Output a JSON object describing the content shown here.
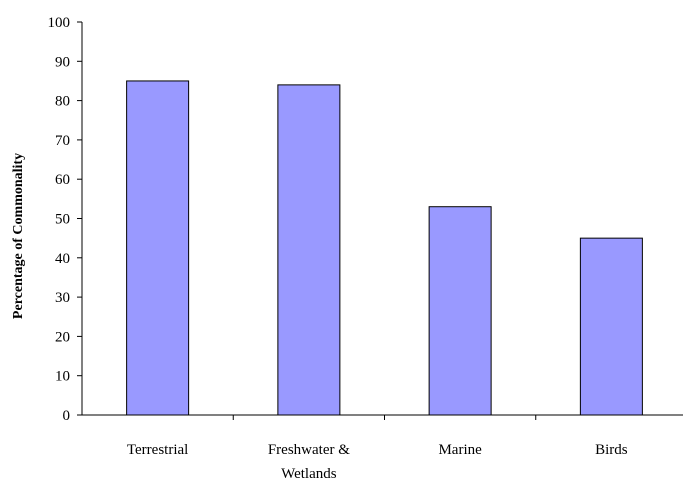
{
  "chart_data": {
    "type": "bar",
    "title": "",
    "xlabel": "",
    "ylabel": "Percentage of Commonality",
    "categories": [
      [
        "Terrestrial"
      ],
      [
        "Freshwater &",
        "Wetlands"
      ],
      [
        "Marine"
      ],
      [
        "Birds"
      ]
    ],
    "values": [
      85,
      84,
      53,
      45
    ],
    "ylim": [
      0,
      100
    ],
    "yticks": [
      0,
      10,
      20,
      30,
      40,
      50,
      60,
      70,
      80,
      90,
      100
    ],
    "grid": false,
    "legend": "none",
    "bar_color": "#9999ff",
    "bar_stroke": "#000000"
  }
}
